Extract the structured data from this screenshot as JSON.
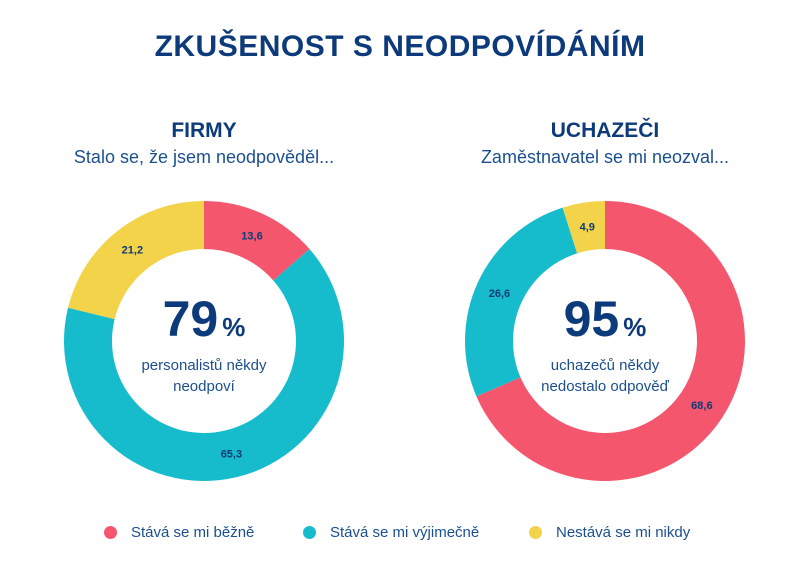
{
  "title": "ZKUŠENOST S NEODPOVÍDÁNÍM",
  "colors": {
    "bezne": "#f4566d",
    "vyjimecne": "#17bccc",
    "nikdy": "#f3d34a",
    "text": "#0d3a7a"
  },
  "legend": [
    {
      "label": "Stává se mi běžně",
      "color": "#f4566d"
    },
    {
      "label": "Stává se mi výjimečně",
      "color": "#17bccc"
    },
    {
      "label": "Nestává se mi nikdy",
      "color": "#f3d34a"
    }
  ],
  "chart_data": [
    {
      "type": "pie",
      "title": "FIRMY",
      "subtitle": "Stalo se, že jsem neodpověděl...",
      "center_value": "79",
      "center_unit": "%",
      "center_text": [
        "personalistů někdy",
        "neodpoví"
      ],
      "slices": [
        {
          "label": "Stává se mi běžně",
          "value": 13.6,
          "display": "13,6",
          "color": "#f4566d"
        },
        {
          "label": "Stává se mi výjimečně",
          "value": 65.3,
          "display": "65,3",
          "color": "#17bccc"
        },
        {
          "label": "Nestává se mi nikdy",
          "value": 21.2,
          "display": "21,2",
          "color": "#f3d34a"
        }
      ]
    },
    {
      "type": "pie",
      "title": "UCHAZEČI",
      "subtitle": "Zaměstnavatel se mi neozval...",
      "center_value": "95",
      "center_unit": "%",
      "center_text": [
        "uchazečů někdy",
        "nedostalo odpověď"
      ],
      "slices": [
        {
          "label": "Stává se mi běžně",
          "value": 68.6,
          "display": "68,6",
          "color": "#f4566d"
        },
        {
          "label": "Stává se mi výjimečně",
          "value": 26.6,
          "display": "26,6",
          "color": "#17bccc"
        },
        {
          "label": "Nestává se mi nikdy",
          "value": 4.9,
          "display": "4,9",
          "color": "#f3d34a"
        }
      ]
    }
  ]
}
